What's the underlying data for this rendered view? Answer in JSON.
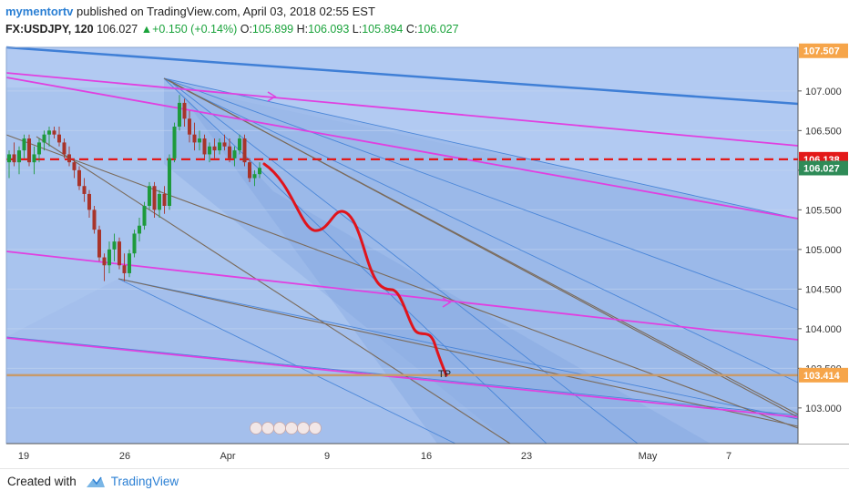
{
  "header": {
    "author": "mymentortv",
    "published_text": "published on TradingView.com, April 03, 2018 02:55 EST",
    "symbol": "FX:USDJPY, 120",
    "last_price": "106.027",
    "change_arrow": "▲",
    "change": "+0.150 (+0.14%)",
    "open_label": "O:",
    "open": "105.899",
    "high_label": "H:",
    "high": "106.093",
    "low_label": "L:",
    "low": "105.894",
    "close_label": "C:",
    "close": "106.027"
  },
  "footer": {
    "created_with": "Created with",
    "brand": "TradingView"
  },
  "colors": {
    "accent": "#2a7fd4",
    "up": "#1aa33b",
    "magenta": "#e040e0",
    "red": "#e31919",
    "target_line": "#c79a6b",
    "price_tag_green": "#2e8b57"
  },
  "chart_data": {
    "type": "candlestick",
    "y_axis_ticks": [
      "107.000",
      "106.500",
      "106.000",
      "105.500",
      "105.000",
      "104.500",
      "104.000",
      "103.500",
      "103.000"
    ],
    "x_axis_ticks": [
      "19",
      "26",
      "Apr",
      "9",
      "16",
      "23",
      "May",
      "7"
    ],
    "ylim": [
      102.55,
      107.55
    ],
    "price_tags": [
      {
        "label": "107.507",
        "value": 107.507,
        "color": "#f6a54a"
      },
      {
        "label": "106.138",
        "value": 106.138,
        "color": "#e31919"
      },
      {
        "label": "106.027",
        "value": 106.027,
        "color": "#2e8b57"
      },
      {
        "label": "103.414",
        "value": 103.414,
        "color": "#f6a54a"
      }
    ],
    "annotations": [
      {
        "text": "TP",
        "value": 103.414
      }
    ],
    "candles": [
      [
        0,
        106.1,
        106.25,
        105.9,
        106.2
      ],
      [
        1,
        106.2,
        106.35,
        106.05,
        106.1
      ],
      [
        2,
        106.1,
        106.3,
        105.95,
        106.25
      ],
      [
        3,
        106.25,
        106.45,
        106.15,
        106.4
      ],
      [
        4,
        106.4,
        106.45,
        106.05,
        106.1
      ],
      [
        5,
        106.1,
        106.3,
        105.95,
        106.2
      ],
      [
        6,
        106.2,
        106.4,
        106.1,
        106.35
      ],
      [
        7,
        106.35,
        106.5,
        106.25,
        106.45
      ],
      [
        8,
        106.45,
        106.55,
        106.3,
        106.5
      ],
      [
        9,
        106.5,
        106.55,
        106.4,
        106.45
      ],
      [
        10,
        106.45,
        106.55,
        106.3,
        106.35
      ],
      [
        11,
        106.35,
        106.4,
        106.15,
        106.2
      ],
      [
        12,
        106.2,
        106.3,
        106.05,
        106.1
      ],
      [
        13,
        106.1,
        106.15,
        105.9,
        106.0
      ],
      [
        14,
        106.0,
        106.05,
        105.75,
        105.8
      ],
      [
        15,
        105.8,
        105.9,
        105.6,
        105.7
      ],
      [
        16,
        105.7,
        105.75,
        105.4,
        105.5
      ],
      [
        17,
        105.5,
        105.55,
        105.2,
        105.25
      ],
      [
        18,
        105.25,
        105.3,
        104.85,
        104.9
      ],
      [
        19,
        104.9,
        104.95,
        104.6,
        104.8
      ],
      [
        20,
        104.8,
        105.1,
        104.7,
        105.0
      ],
      [
        21,
        105.0,
        105.2,
        104.85,
        105.1
      ],
      [
        22,
        105.1,
        105.15,
        104.75,
        104.8
      ],
      [
        23,
        104.8,
        104.95,
        104.6,
        104.7
      ],
      [
        24,
        104.7,
        105.0,
        104.65,
        104.95
      ],
      [
        25,
        104.95,
        105.25,
        104.9,
        105.2
      ],
      [
        26,
        105.2,
        105.4,
        105.1,
        105.3
      ],
      [
        27,
        105.3,
        105.6,
        105.25,
        105.55
      ],
      [
        28,
        105.55,
        105.85,
        105.5,
        105.8
      ],
      [
        29,
        105.8,
        105.85,
        105.4,
        105.5
      ],
      [
        30,
        105.5,
        105.75,
        105.4,
        105.7
      ],
      [
        31,
        105.7,
        105.8,
        105.45,
        105.55
      ],
      [
        32,
        105.55,
        106.2,
        105.5,
        106.15
      ],
      [
        33,
        106.15,
        106.6,
        106.1,
        106.55
      ],
      [
        34,
        106.55,
        106.95,
        106.5,
        106.85
      ],
      [
        35,
        106.85,
        106.9,
        106.55,
        106.65
      ],
      [
        36,
        106.65,
        106.75,
        106.35,
        106.45
      ],
      [
        37,
        106.45,
        106.6,
        106.25,
        106.35
      ],
      [
        38,
        106.35,
        106.5,
        106.25,
        106.4
      ],
      [
        39,
        106.4,
        106.45,
        106.15,
        106.2
      ],
      [
        40,
        106.2,
        106.35,
        106.1,
        106.3
      ],
      [
        41,
        106.3,
        106.4,
        106.15,
        106.25
      ],
      [
        42,
        106.25,
        106.4,
        106.2,
        106.35
      ],
      [
        43,
        106.35,
        106.45,
        106.25,
        106.3
      ],
      [
        44,
        106.3,
        106.4,
        106.1,
        106.15
      ],
      [
        45,
        106.15,
        106.3,
        106.05,
        106.25
      ],
      [
        46,
        106.25,
        106.45,
        106.2,
        106.4
      ],
      [
        47,
        106.4,
        106.45,
        106.05,
        106.1
      ],
      [
        48,
        106.1,
        106.15,
        105.85,
        105.9
      ],
      [
        49,
        105.9,
        106.0,
        105.8,
        105.95
      ],
      [
        50,
        105.95,
        106.1,
        105.9,
        106.03
      ]
    ]
  }
}
